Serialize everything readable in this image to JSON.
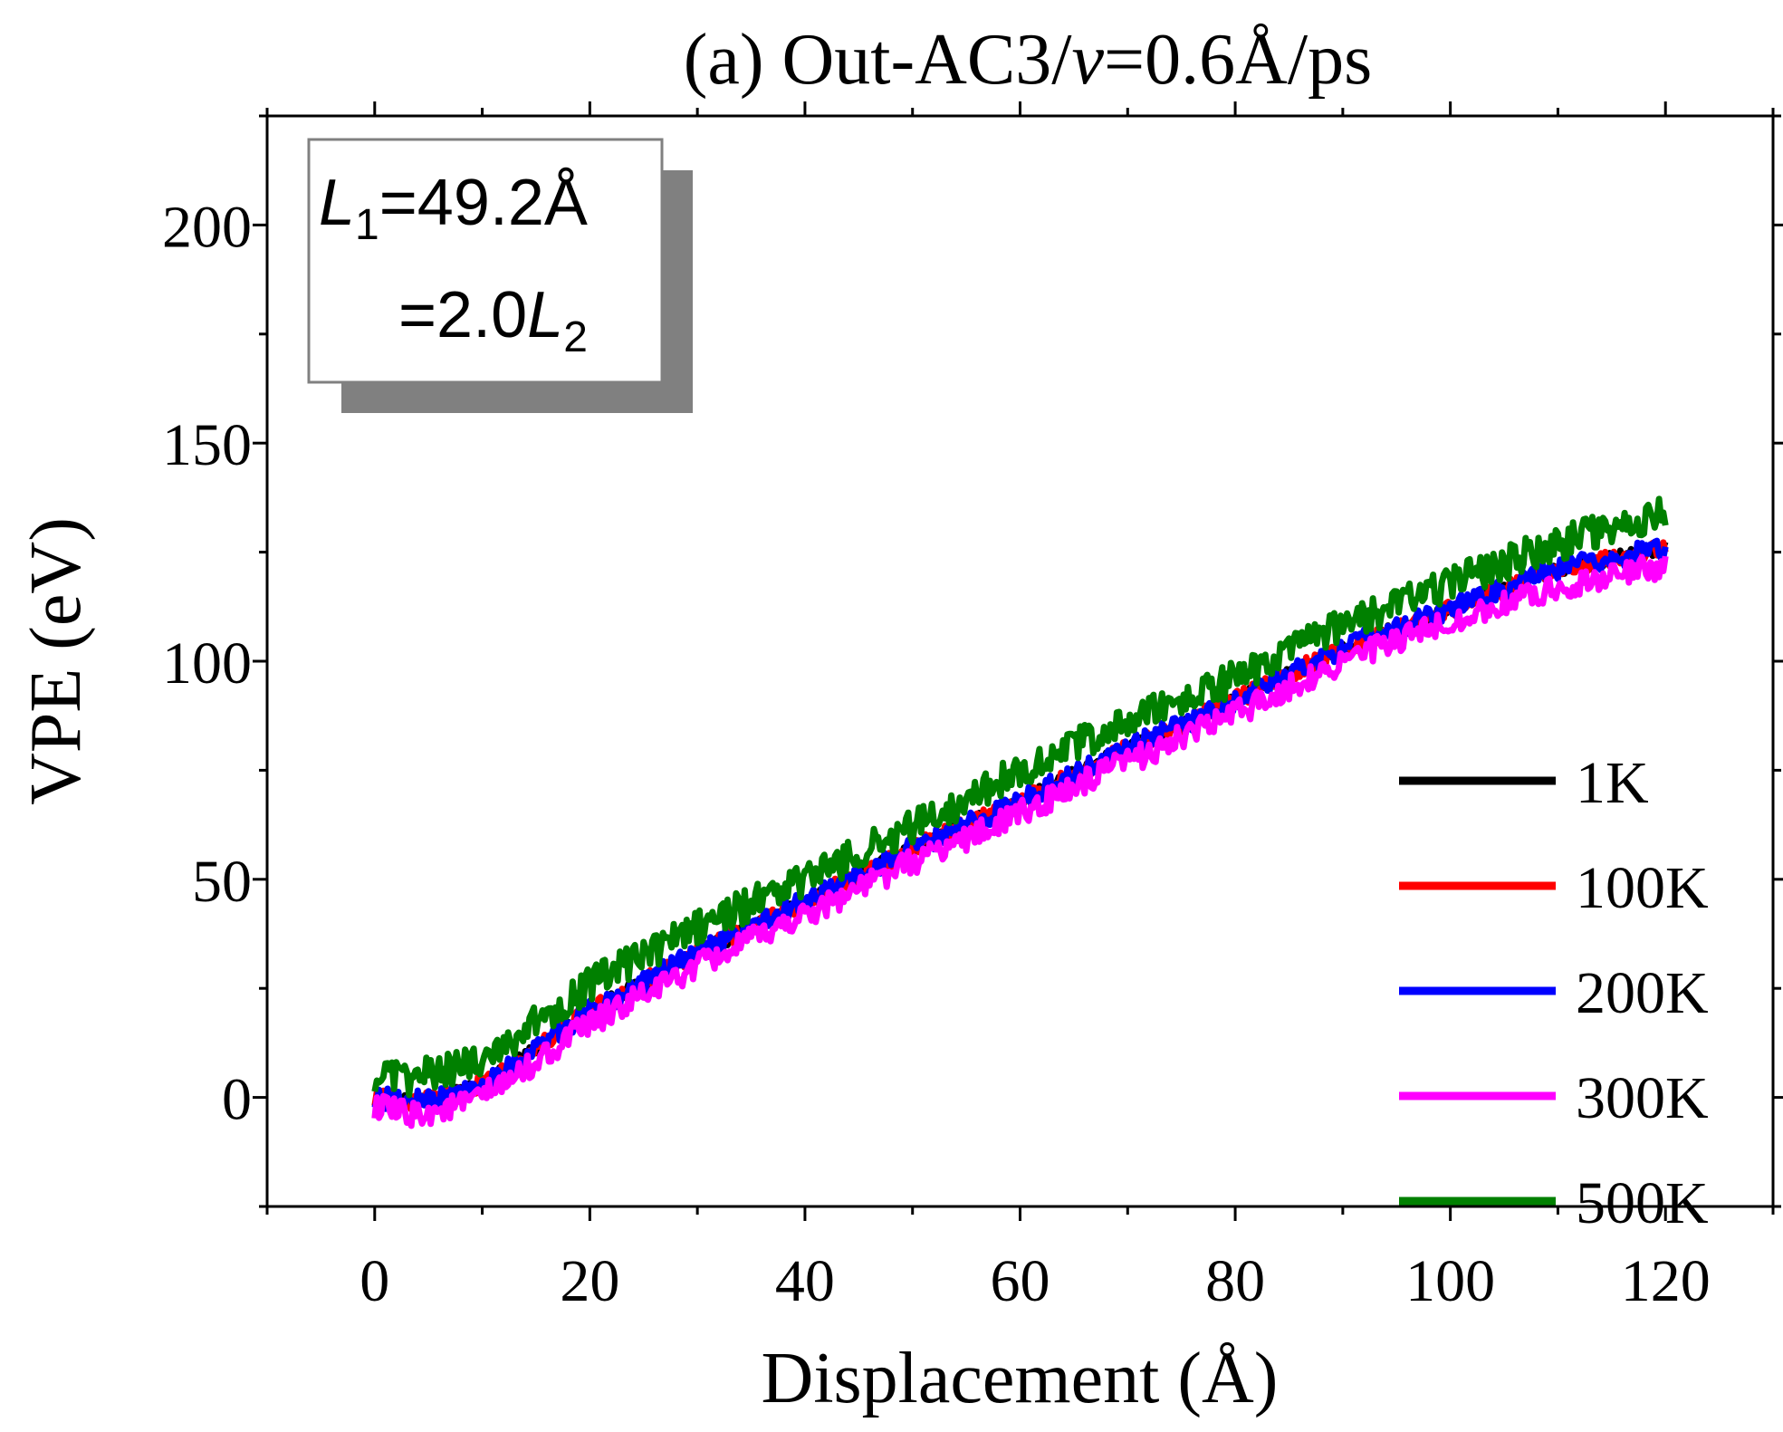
{
  "chart_data": {
    "type": "line",
    "title": {
      "prefix": "(a) Out-AC3/",
      "italic": "v",
      "suffix": "=0.6Å/ps"
    },
    "xlabel": "Displacement (Å)",
    "ylabel": "VPE (eV)",
    "xlim": [
      -10,
      130
    ],
    "ylim": [
      -25,
      225
    ],
    "xticks": [
      0,
      20,
      40,
      60,
      80,
      100,
      120
    ],
    "yticks": [
      0,
      50,
      100,
      150,
      200
    ],
    "annotation": {
      "line1_var": "L",
      "line1_sub": "1",
      "line1_rest": "=49.2Å",
      "line2_pre": "=2.0",
      "line2_var": "L",
      "line2_sub": "2"
    },
    "legend_position": "bottom-right",
    "series": [
      {
        "name": "1K",
        "color": "#000000",
        "noise": 1.5,
        "x": [
          0,
          3,
          6,
          9,
          12,
          20,
          30,
          40,
          50,
          60,
          70,
          80,
          90,
          100,
          110,
          120
        ],
        "y": [
          0,
          -1,
          0,
          2,
          6,
          20,
          33,
          45,
          57,
          68,
          80,
          91,
          103,
          112,
          121,
          126
        ]
      },
      {
        "name": "100K",
        "color": "#ff0000",
        "noise": 2.0,
        "x": [
          0,
          3,
          6,
          9,
          12,
          20,
          30,
          40,
          50,
          60,
          70,
          80,
          90,
          100,
          110,
          120
        ],
        "y": [
          0,
          -1,
          0,
          2,
          6,
          20,
          33,
          45,
          57,
          68,
          80,
          91,
          103,
          112,
          121,
          126
        ]
      },
      {
        "name": "200K",
        "color": "#0000ff",
        "noise": 2.5,
        "x": [
          0,
          3,
          6,
          9,
          12,
          20,
          30,
          40,
          50,
          60,
          70,
          80,
          90,
          100,
          110,
          120
        ],
        "y": [
          0,
          -1,
          0,
          2,
          6,
          20,
          33,
          45,
          57,
          68,
          80,
          91,
          103,
          112,
          121,
          126
        ]
      },
      {
        "name": "300K",
        "color": "#ff00ff",
        "noise": 3.0,
        "x": [
          0,
          3,
          6,
          9,
          12,
          20,
          30,
          40,
          50,
          60,
          70,
          80,
          90,
          100,
          110,
          120
        ],
        "y": [
          -2,
          -4,
          -3,
          -1,
          3,
          17,
          30,
          42,
          54,
          65,
          77,
          88,
          100,
          109,
          117,
          122
        ]
      },
      {
        "name": "500K",
        "color": "#008000",
        "noise": 4.0,
        "x": [
          0,
          3,
          6,
          9,
          12,
          20,
          30,
          40,
          50,
          60,
          70,
          80,
          90,
          100,
          110,
          120
        ],
        "y": [
          5,
          4,
          6,
          8,
          12,
          26,
          39,
          50,
          62,
          75,
          86,
          96,
          108,
          118,
          127,
          134
        ]
      }
    ]
  }
}
